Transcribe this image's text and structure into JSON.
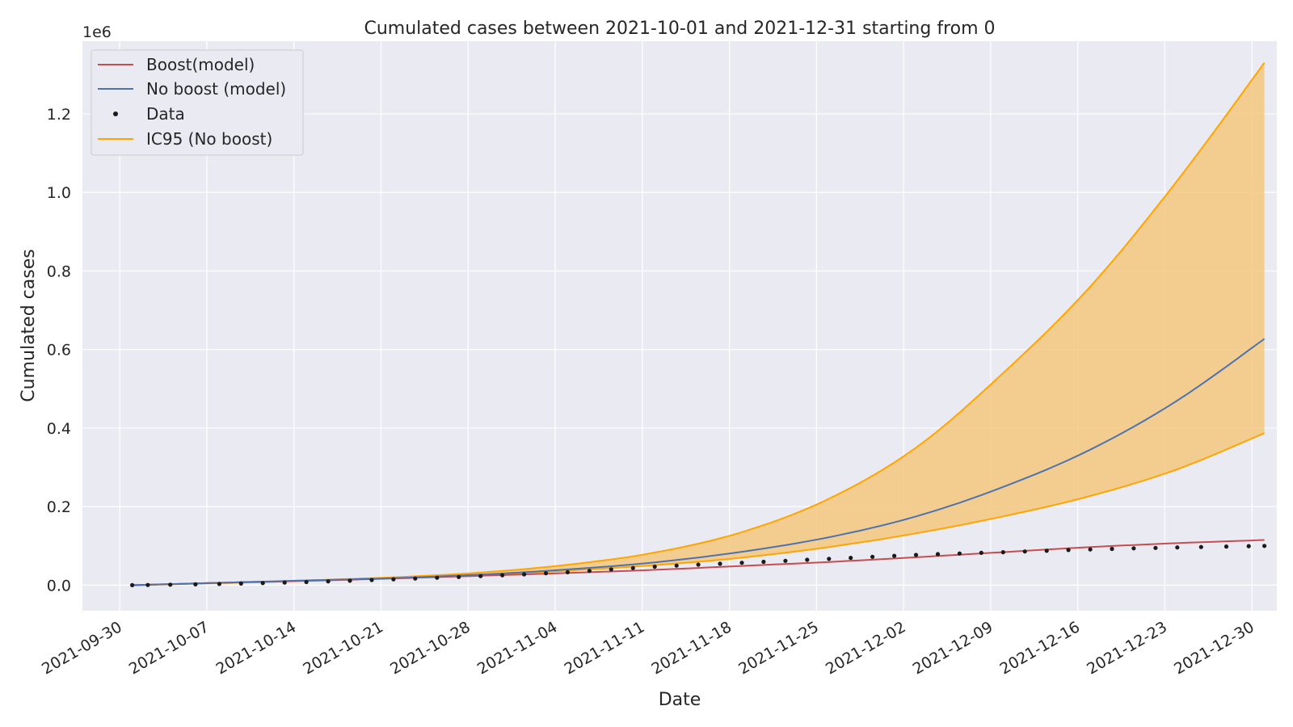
{
  "chart_data": {
    "type": "line",
    "title": "Cumulated cases between 2021-10-01 and 2021-12-31 starting from 0",
    "xlabel": "Date",
    "ylabel": "Cumulated cases",
    "y_scale_label": "1e6",
    "x_range": [
      "2021-09-27",
      "2022-01-01"
    ],
    "ylim": [
      -0.065,
      1.385
    ],
    "y_ticks": [
      "0.0",
      "0.2",
      "0.4",
      "0.6",
      "0.8",
      "1.0",
      "1.2"
    ],
    "y_tick_values": [
      0.0,
      0.2,
      0.4,
      0.6,
      0.8,
      1.0,
      1.2
    ],
    "x_ticks": [
      "2021-09-30",
      "2021-10-07",
      "2021-10-14",
      "2021-10-21",
      "2021-10-28",
      "2021-11-04",
      "2021-11-11",
      "2021-11-18",
      "2021-11-25",
      "2021-12-02",
      "2021-12-09",
      "2021-12-16",
      "2021-12-23",
      "2021-12-30"
    ],
    "grid": true,
    "legend_position": "top-left",
    "legend": [
      "Boost(model)",
      "No boost (model)",
      "Data",
      "IC95 (No boost)"
    ],
    "dates": [
      "2021-10-01",
      "2021-10-08",
      "2021-10-15",
      "2021-10-22",
      "2021-10-29",
      "2021-11-05",
      "2021-11-12",
      "2021-11-19",
      "2021-11-26",
      "2021-12-03",
      "2021-12-10",
      "2021-12-17",
      "2021-12-24",
      "2021-12-31"
    ],
    "series": [
      {
        "name": "Boost(model)",
        "color": "#c44e52",
        "style": "line",
        "values": [
          0.0,
          0.006,
          0.011,
          0.017,
          0.024,
          0.031,
          0.039,
          0.049,
          0.059,
          0.071,
          0.084,
          0.097,
          0.107,
          0.115
        ]
      },
      {
        "name": "No boost (model)",
        "color": "#4c72b0",
        "style": "line",
        "values": [
          0.0,
          0.006,
          0.012,
          0.018,
          0.027,
          0.04,
          0.058,
          0.085,
          0.122,
          0.175,
          0.25,
          0.345,
          0.47,
          0.627
        ]
      },
      {
        "name": "Data",
        "color": "#1a1a1a",
        "style": "points",
        "values": [
          0.0,
          0.003,
          0.008,
          0.015,
          0.023,
          0.033,
          0.047,
          0.057,
          0.067,
          0.077,
          0.084,
          0.091,
          0.096,
          0.1
        ]
      }
    ],
    "band": {
      "name": "IC95 (No boost)",
      "color": "#ffa500",
      "fill": "#f5c87f",
      "lower": [
        0.0,
        0.005,
        0.011,
        0.018,
        0.026,
        0.037,
        0.051,
        0.07,
        0.097,
        0.132,
        0.175,
        0.227,
        0.295,
        0.387
      ],
      "upper": [
        0.0,
        0.006,
        0.012,
        0.02,
        0.032,
        0.052,
        0.083,
        0.135,
        0.22,
        0.35,
        0.54,
        0.76,
        1.03,
        1.33
      ]
    }
  }
}
